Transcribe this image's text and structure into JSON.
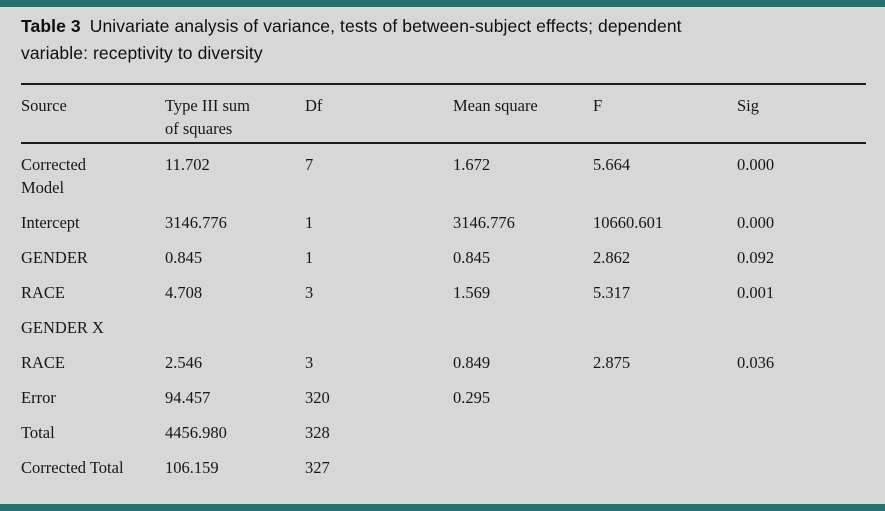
{
  "page": {
    "background_color": "#d6d7d6",
    "accent_bar_color": "#25706f",
    "rule_color": "#1c1c1c"
  },
  "caption": {
    "label": "Table 3",
    "line1": "Univariate analysis of variance, tests of between-subject effects; dependent",
    "line2": "variable: receptivity to diversity"
  },
  "table": {
    "headers": [
      "Source",
      "Type III sum\nof squares",
      "Df",
      "Mean square",
      "F",
      "Sig"
    ],
    "rows": [
      {
        "source": "Corrected\nModel",
        "type_iii_sum": "11.702",
        "df": "7",
        "mean_square": "1.672",
        "f": "5.664",
        "sig": "0.000"
      },
      {
        "source": "Intercept",
        "type_iii_sum": "3146.776",
        "df": "1",
        "mean_square": "3146.776",
        "f": "10660.601",
        "sig": "0.000"
      },
      {
        "source": "GENDER",
        "type_iii_sum": "0.845",
        "df": "1",
        "mean_square": "0.845",
        "f": "2.862",
        "sig": "0.092"
      },
      {
        "source": "RACE",
        "type_iii_sum": "4.708",
        "df": "3",
        "mean_square": "1.569",
        "f": "5.317",
        "sig": "0.001"
      },
      {
        "source": "GENDER X",
        "type_iii_sum": "",
        "df": "",
        "mean_square": "",
        "f": "",
        "sig": ""
      },
      {
        "source": "RACE",
        "type_iii_sum": "2.546",
        "df": "3",
        "mean_square": "0.849",
        "f": "2.875",
        "sig": "0.036"
      },
      {
        "source": "Error",
        "type_iii_sum": "94.457",
        "df": "320",
        "mean_square": "0.295",
        "f": "",
        "sig": ""
      },
      {
        "source": "Total",
        "type_iii_sum": "4456.980",
        "df": "328",
        "mean_square": "",
        "f": "",
        "sig": ""
      },
      {
        "source": "Corrected Total",
        "type_iii_sum": "106.159",
        "df": "327",
        "mean_square": "",
        "f": "",
        "sig": ""
      }
    ]
  }
}
